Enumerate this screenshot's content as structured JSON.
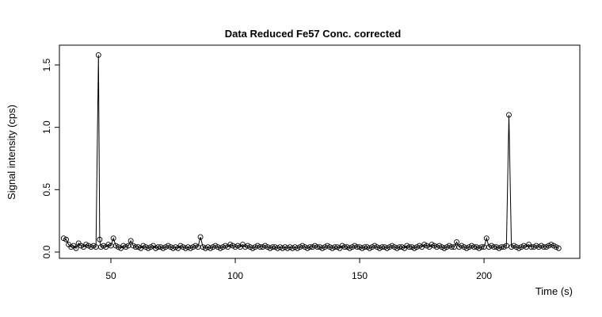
{
  "chart_data": {
    "type": "line",
    "title": "Data Reduced Fe57 Conc. corrected",
    "x_label": "Time (s)",
    "y_label": "Signal intensity (cps)",
    "color": "#000000",
    "markers": true,
    "xlim": [
      29.3,
      238.5
    ],
    "ylim": [
      -0.051,
      1.659
    ],
    "xticks": [
      50,
      100,
      150,
      200
    ],
    "yticks": [
      {
        "value": 0,
        "label": "0.0"
      },
      {
        "value": 0.5,
        "label": "0.5"
      },
      {
        "value": 1,
        "label": "1.0"
      },
      {
        "value": 1.5,
        "label": "1.5"
      }
    ],
    "x": [
      31,
      32,
      33,
      34,
      35,
      36,
      37,
      38,
      39,
      40,
      41,
      42,
      43,
      44,
      45,
      45.5,
      46,
      47,
      48,
      49,
      50,
      51,
      52,
      53,
      54,
      55,
      56,
      57,
      58,
      59,
      60,
      61,
      62,
      63,
      64,
      65,
      66,
      67,
      68,
      69,
      70,
      71,
      72,
      73,
      74,
      75,
      76,
      77,
      78,
      79,
      80,
      81,
      82,
      83,
      84,
      85,
      86,
      87,
      88,
      89,
      90,
      91,
      92,
      93,
      94,
      95,
      96,
      97,
      98,
      99,
      100,
      101,
      102,
      103,
      104,
      105,
      106,
      107,
      108,
      109,
      110,
      111,
      112,
      113,
      114,
      115,
      116,
      117,
      118,
      119,
      120,
      121,
      122,
      123,
      124,
      125,
      126,
      127,
      128,
      129,
      130,
      131,
      132,
      133,
      134,
      135,
      136,
      137,
      138,
      139,
      140,
      141,
      142,
      143,
      144,
      145,
      146,
      147,
      148,
      149,
      150,
      151,
      152,
      153,
      154,
      155,
      156,
      157,
      158,
      159,
      160,
      161,
      162,
      163,
      164,
      165,
      166,
      167,
      168,
      169,
      170,
      171,
      172,
      173,
      174,
      175,
      176,
      177,
      178,
      179,
      180,
      181,
      182,
      183,
      184,
      185,
      186,
      187,
      188,
      189,
      190,
      191,
      192,
      193,
      194,
      195,
      196,
      197,
      198,
      199,
      200,
      201,
      202,
      203,
      204,
      205,
      206,
      207,
      208,
      209,
      210,
      211,
      212,
      213,
      214,
      215,
      216,
      217,
      218,
      219,
      220,
      221,
      222,
      223,
      224,
      225,
      226,
      227,
      228,
      229,
      230
    ],
    "values": [
      0.11,
      0.1,
      0.06,
      0.04,
      0.05,
      0.03,
      0.07,
      0.05,
      0.04,
      0.06,
      0.05,
      0.04,
      0.05,
      0.04,
      1.58,
      0.1,
      0.04,
      0.05,
      0.04,
      0.06,
      0.05,
      0.11,
      0.05,
      0.04,
      0.03,
      0.05,
      0.04,
      0.05,
      0.09,
      0.05,
      0.04,
      0.04,
      0.03,
      0.05,
      0.04,
      0.03,
      0.04,
      0.05,
      0.03,
      0.04,
      0.04,
      0.03,
      0.04,
      0.05,
      0.04,
      0.03,
      0.04,
      0.03,
      0.05,
      0.04,
      0.03,
      0.04,
      0.03,
      0.04,
      0.05,
      0.04,
      0.12,
      0.04,
      0.03,
      0.04,
      0.03,
      0.04,
      0.05,
      0.04,
      0.03,
      0.04,
      0.05,
      0.04,
      0.06,
      0.05,
      0.04,
      0.05,
      0.04,
      0.06,
      0.04,
      0.05,
      0.04,
      0.03,
      0.04,
      0.05,
      0.04,
      0.04,
      0.05,
      0.04,
      0.03,
      0.04,
      0.04,
      0.03,
      0.04,
      0.03,
      0.04,
      0.03,
      0.04,
      0.03,
      0.04,
      0.03,
      0.04,
      0.05,
      0.04,
      0.03,
      0.04,
      0.04,
      0.05,
      0.04,
      0.04,
      0.03,
      0.04,
      0.05,
      0.04,
      0.03,
      0.04,
      0.04,
      0.03,
      0.05,
      0.04,
      0.04,
      0.03,
      0.04,
      0.05,
      0.04,
      0.04,
      0.03,
      0.04,
      0.04,
      0.03,
      0.04,
      0.05,
      0.04,
      0.03,
      0.04,
      0.04,
      0.03,
      0.04,
      0.05,
      0.04,
      0.03,
      0.04,
      0.04,
      0.03,
      0.05,
      0.04,
      0.04,
      0.03,
      0.04,
      0.05,
      0.04,
      0.06,
      0.05,
      0.04,
      0.06,
      0.05,
      0.04,
      0.05,
      0.04,
      0.03,
      0.04,
      0.05,
      0.04,
      0.04,
      0.08,
      0.04,
      0.05,
      0.04,
      0.03,
      0.04,
      0.05,
      0.04,
      0.04,
      0.03,
      0.04,
      0.04,
      0.11,
      0.04,
      0.05,
      0.04,
      0.04,
      0.03,
      0.04,
      0.04,
      0.05,
      1.1,
      0.04,
      0.05,
      0.04,
      0.03,
      0.04,
      0.05,
      0.04,
      0.06,
      0.04,
      0.04,
      0.05,
      0.04,
      0.05,
      0.04,
      0.04,
      0.05,
      0.06,
      0.05,
      0.04,
      0.03
    ]
  }
}
